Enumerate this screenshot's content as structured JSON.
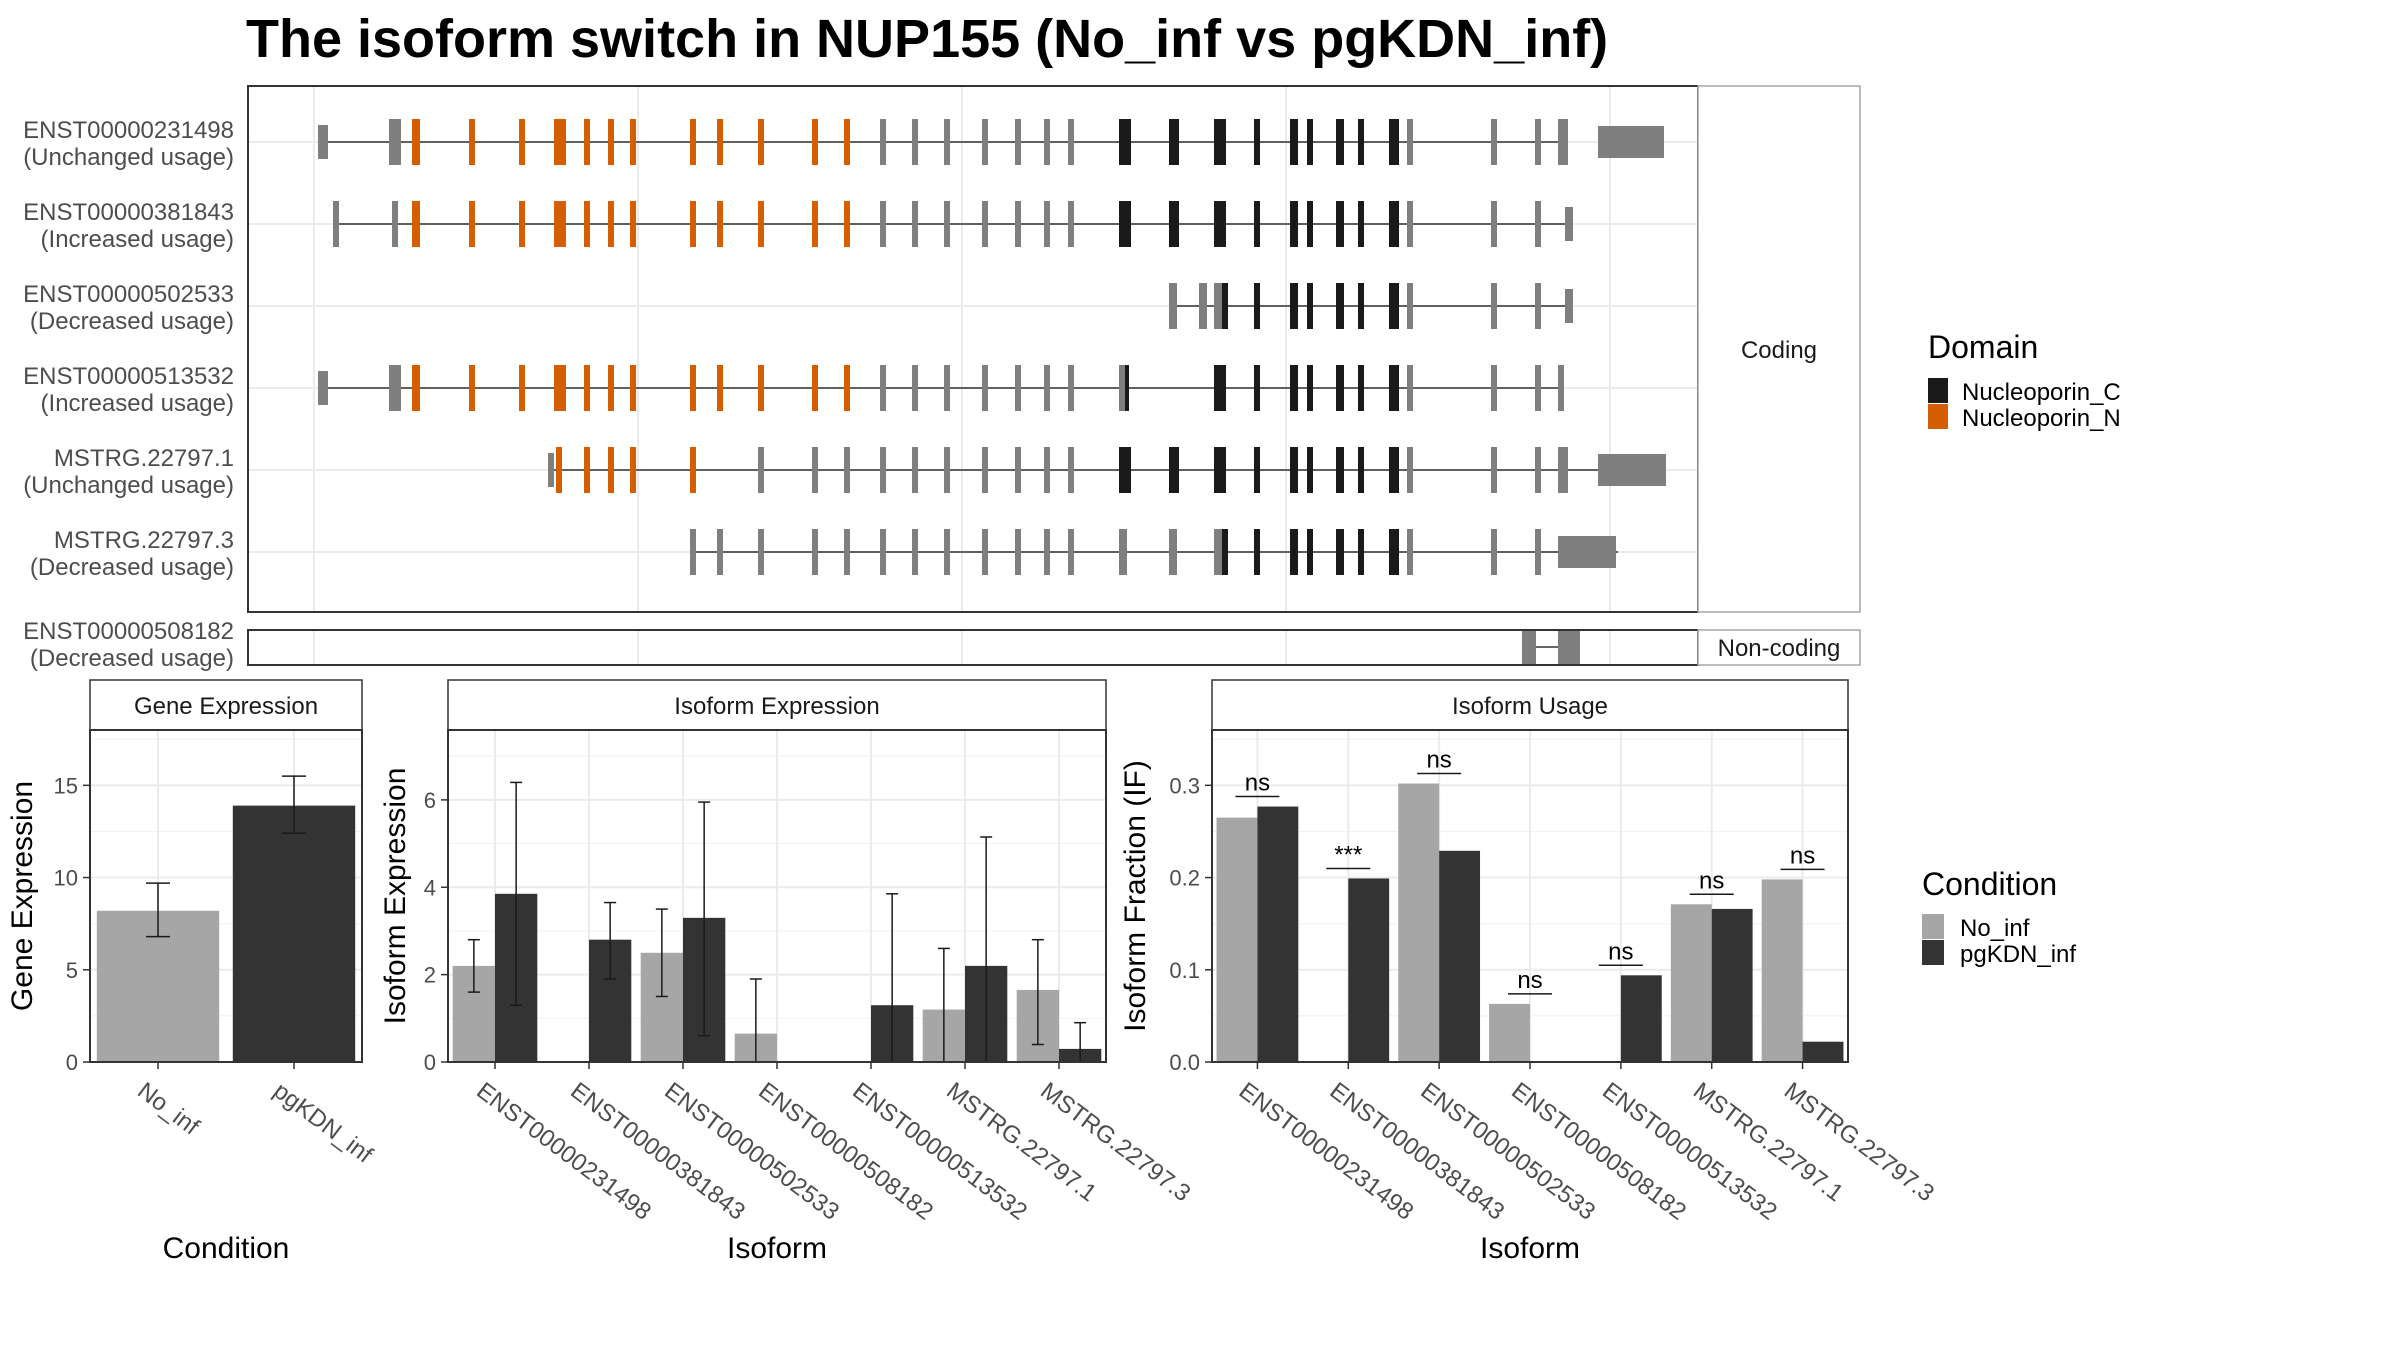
{
  "title": "The isoform switch in NUP155 (No_inf vs pgKDN_inf)",
  "colors": {
    "nucleoporin_c": "#1a1a1a",
    "nucleoporin_n": "#d55e00",
    "exon_grey": "#7f7f7f",
    "no_inf": "#a6a6a6",
    "pgkdn_inf": "#333333",
    "grid": "#ebebeb",
    "panel_border": "#333333",
    "strip_border": "#a6a6a6"
  },
  "structure": {
    "coding_strip_label": "Coding",
    "noncoding_strip_label": "Non-coding",
    "domain_legend": {
      "title": "Domain",
      "items": [
        {
          "label": "Nucleoporin_C",
          "color": "#1a1a1a"
        },
        {
          "label": "Nucleoporin_N",
          "color": "#d55e00"
        }
      ]
    },
    "isoforms": [
      {
        "name": "ENST00000231498",
        "usage": "(Unchanged usage)"
      },
      {
        "name": "ENST00000381843",
        "usage": "(Increased usage)"
      },
      {
        "name": "ENST00000502533",
        "usage": "(Decreased usage)"
      },
      {
        "name": "ENST00000513532",
        "usage": "(Increased usage)"
      },
      {
        "name": "MSTRG.22797.1",
        "usage": "(Unchanged usage)"
      },
      {
        "name": "MSTRG.22797.3",
        "usage": "(Decreased usage)"
      }
    ],
    "noncoding_isoform": {
      "name": "ENST00000508182",
      "usage": "(Decreased usage)"
    }
  },
  "chart_data": [
    {
      "type": "bar",
      "title": "Gene Expression",
      "xlabel": "Condition",
      "ylabel": "Gene Expression",
      "categories": [
        "No_inf",
        "pgKDN_inf"
      ],
      "values": [
        8.2,
        13.9
      ],
      "errors": [
        [
          6.8,
          9.7
        ],
        [
          12.4,
          15.5
        ]
      ],
      "ylim": [
        0,
        18
      ],
      "yticks": [
        0,
        5,
        10,
        15
      ]
    },
    {
      "type": "bar",
      "title": "Isoform Expression",
      "xlabel": "Isoform",
      "ylabel": "Isoform Expression",
      "categories": [
        "ENST00000231498",
        "ENST00000381843",
        "ENST00000502533",
        "ENST00000508182",
        "ENST00000513532",
        "MSTRG.22797.1",
        "MSTRG.22797.3"
      ],
      "series": [
        {
          "name": "No_inf",
          "values": [
            2.2,
            0.0,
            2.5,
            0.65,
            0.0,
            1.2,
            1.65
          ],
          "errors": [
            [
              1.6,
              2.8
            ],
            null,
            [
              1.5,
              3.5
            ],
            [
              0.0,
              1.9
            ],
            null,
            [
              0.0,
              2.6
            ],
            [
              0.4,
              2.8
            ]
          ]
        },
        {
          "name": "pgKDN_inf",
          "values": [
            3.85,
            2.8,
            3.3,
            0.0,
            1.3,
            2.2,
            0.3
          ],
          "errors": [
            [
              1.3,
              6.4
            ],
            [
              1.9,
              3.65
            ],
            [
              0.6,
              5.95
            ],
            null,
            [
              0.0,
              3.85
            ],
            [
              0.0,
              5.15
            ],
            [
              0.0,
              0.9
            ]
          ]
        }
      ],
      "ylim": [
        0,
        7.6
      ],
      "yticks": [
        0,
        2,
        4,
        6
      ]
    },
    {
      "type": "bar",
      "title": "Isoform Usage",
      "xlabel": "Isoform",
      "ylabel": "Isoform Fraction (IF)",
      "categories": [
        "ENST00000231498",
        "ENST00000381843",
        "ENST00000502533",
        "ENST00000508182",
        "ENST00000513532",
        "MSTRG.22797.1",
        "MSTRG.22797.3"
      ],
      "series": [
        {
          "name": "No_inf",
          "values": [
            0.265,
            0.0,
            0.302,
            0.063,
            0.0,
            0.171,
            0.198
          ]
        },
        {
          "name": "pgKDN_inf",
          "values": [
            0.277,
            0.199,
            0.229,
            0.0,
            0.094,
            0.166,
            0.022
          ]
        }
      ],
      "significance": [
        "ns",
        "***",
        "ns",
        "ns",
        "ns",
        "ns",
        "ns"
      ],
      "ylim": [
        0,
        0.36
      ],
      "yticks": [
        "0.0",
        "0.1",
        "0.2",
        "0.3"
      ]
    }
  ],
  "condition_legend": {
    "title": "Condition",
    "items": [
      {
        "label": "No_inf",
        "color": "#a6a6a6"
      },
      {
        "label": "pgKDN_inf",
        "color": "#333333"
      }
    ]
  }
}
